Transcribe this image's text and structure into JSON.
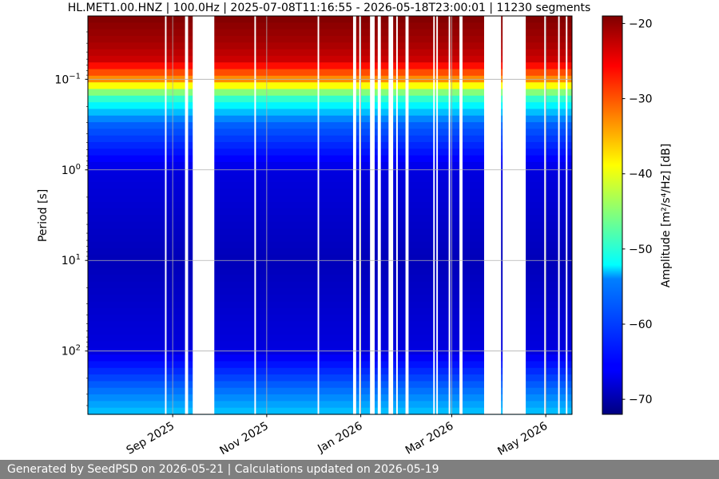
{
  "chart_data": {
    "type": "heatmap",
    "title": "HL.MET1.00.HNZ | 100.0Hz | 2025-07-08T11:16:55 - 2026-05-18T23:00:01 | 11230 segments",
    "ylabel": "Period [s]",
    "y_scale": "log",
    "y_inverted": true,
    "y_ticks": [
      {
        "value": 0.1,
        "base": "10",
        "exp": "−1"
      },
      {
        "value": 1,
        "base": "10",
        "exp": "0"
      },
      {
        "value": 10,
        "base": "10",
        "exp": "1"
      },
      {
        "value": 100,
        "base": "10",
        "exp": "2"
      }
    ],
    "ylim": [
      0.02,
      500
    ],
    "xlim": [
      "2025-07-08",
      "2026-05-18"
    ],
    "x_ticks": [
      {
        "date": "2025-09-01",
        "label": "Sep 2025"
      },
      {
        "date": "2025-11-01",
        "label": "Nov 2025"
      },
      {
        "date": "2026-01-01",
        "label": "Jan 2026"
      },
      {
        "date": "2026-03-01",
        "label": "Mar 2026"
      },
      {
        "date": "2026-05-01",
        "label": "May 2026"
      }
    ],
    "grid": true,
    "colormap": "jet",
    "colorbar": {
      "label": "Amplitude [m²/s⁴/Hz] [dB]",
      "range": [
        -72,
        -19
      ],
      "ticks": [
        {
          "value": -20,
          "label": "−20"
        },
        {
          "value": -30,
          "label": "−30"
        },
        {
          "value": -40,
          "label": "−40"
        },
        {
          "value": -50,
          "label": "−50"
        },
        {
          "value": -60,
          "label": "−60"
        },
        {
          "value": -70,
          "label": "−70"
        }
      ]
    },
    "data_gaps": [
      [
        "2025-08-27",
        "2025-08-28"
      ],
      [
        "2025-09-09",
        "2025-09-11"
      ],
      [
        "2025-09-14",
        "2025-09-28"
      ],
      [
        "2025-10-24",
        "2025-10-25"
      ],
      [
        "2025-12-04",
        "2025-12-05"
      ],
      [
        "2025-12-27",
        "2025-12-29"
      ],
      [
        "2025-12-31",
        "2026-01-01"
      ],
      [
        "2026-01-07",
        "2026-01-10"
      ],
      [
        "2026-01-12",
        "2026-01-14"
      ],
      [
        "2026-01-19",
        "2026-01-22"
      ],
      [
        "2026-01-24",
        "2026-01-25"
      ],
      [
        "2026-01-30",
        "2026-02-01"
      ],
      [
        "2026-02-17",
        "2026-02-18"
      ],
      [
        "2026-02-19",
        "2026-02-20"
      ],
      [
        "2026-02-27",
        "2026-02-28"
      ],
      [
        "2026-03-06",
        "2026-03-08"
      ],
      [
        "2026-03-22",
        "2026-04-02"
      ],
      [
        "2026-04-03",
        "2026-04-18"
      ],
      [
        "2026-04-30",
        "2026-05-01"
      ],
      [
        "2026-05-09",
        "2026-05-10"
      ],
      [
        "2026-05-14",
        "2026-05-15"
      ]
    ],
    "amplitude_profile_db": [
      {
        "period": 0.02,
        "amplitude": -19
      },
      {
        "period": 0.04,
        "amplitude": -21
      },
      {
        "period": 0.06,
        "amplitude": -23
      },
      {
        "period": 0.1,
        "amplitude": -33
      },
      {
        "period": 0.15,
        "amplitude": -48
      },
      {
        "period": 0.3,
        "amplitude": -60
      },
      {
        "period": 1,
        "amplitude": -67
      },
      {
        "period": 10,
        "amplitude": -69
      },
      {
        "period": 100,
        "amplitude": -67
      },
      {
        "period": 500,
        "amplitude": -55
      }
    ]
  },
  "footer": {
    "text": "Generated by SeedPSD on 2026-05-21 | Calculations updated on 2026-05-19"
  }
}
